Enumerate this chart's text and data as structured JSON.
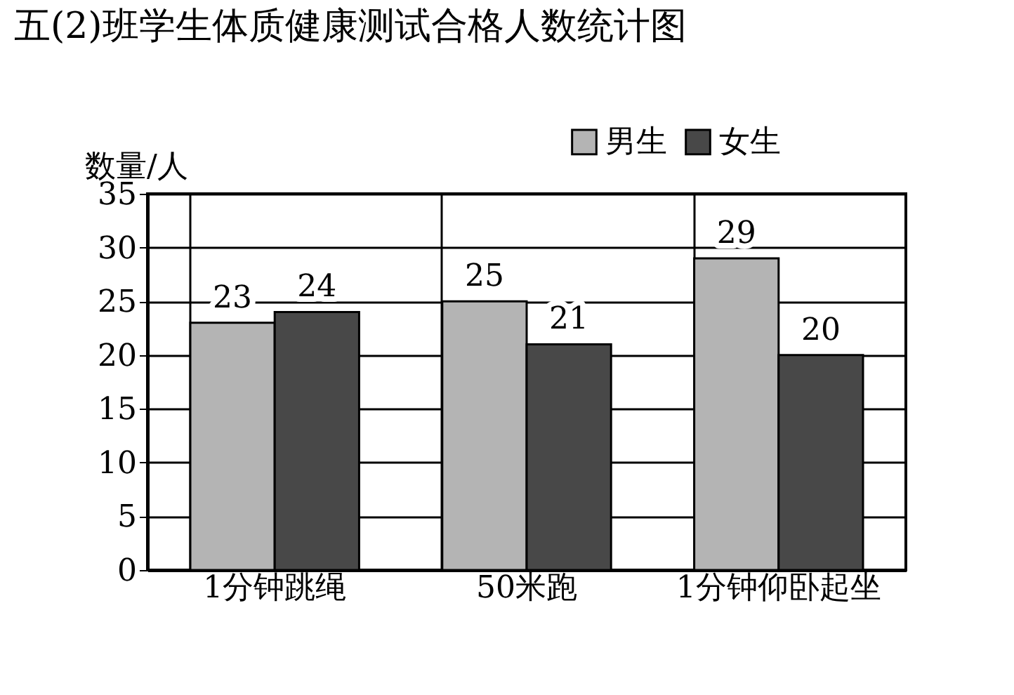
{
  "chart_data": {
    "type": "bar",
    "title": "五(2)班学生体质健康测试合格人数统计图",
    "ylabel": "数量/人",
    "categories": [
      "1分钟跳绳",
      "50米跑",
      "1分钟仰卧起坐"
    ],
    "series": [
      {
        "name": "男生",
        "color": "#b4b4b4",
        "values": [
          23,
          25,
          29
        ]
      },
      {
        "name": "女生",
        "color": "#484848",
        "values": [
          24,
          21,
          20
        ]
      }
    ],
    "ylim": [
      0,
      35
    ],
    "yticks": [
      0,
      5,
      10,
      15,
      20,
      25,
      30,
      35
    ],
    "grid": true,
    "legend": "top right",
    "data_labels": true
  }
}
